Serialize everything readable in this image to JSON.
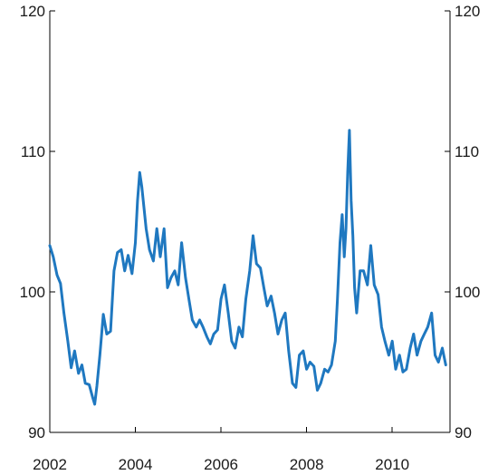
{
  "chart_data": {
    "type": "line",
    "title": "",
    "xlabel": "",
    "ylabel": "",
    "xlim": [
      2002,
      2011.35
    ],
    "ylim": [
      90,
      120
    ],
    "x_ticks": [
      "2002",
      "2004",
      "2006",
      "2008",
      "2010"
    ],
    "y_ticks_left": [
      "90",
      "100",
      "110",
      "120"
    ],
    "y_ticks_right": [
      "90",
      "100",
      "110",
      "120"
    ],
    "grid": false,
    "legend": "none",
    "series": [
      {
        "color": "#1f78c0",
        "x": [
          2002.0,
          2002.08,
          2002.17,
          2002.25,
          2002.33,
          2002.42,
          2002.5,
          2002.58,
          2002.67,
          2002.75,
          2002.83,
          2002.92,
          2003.0,
          2003.05,
          2003.1,
          2003.17,
          2003.25,
          2003.33,
          2003.42,
          2003.5,
          2003.58,
          2003.67,
          2003.75,
          2003.83,
          2003.92,
          2004.0,
          2004.05,
          2004.1,
          2004.15,
          2004.25,
          2004.33,
          2004.42,
          2004.5,
          2004.58,
          2004.67,
          2004.75,
          2004.83,
          2004.92,
          2005.0,
          2005.08,
          2005.17,
          2005.25,
          2005.33,
          2005.42,
          2005.5,
          2005.58,
          2005.67,
          2005.75,
          2005.83,
          2005.92,
          2006.0,
          2006.08,
          2006.17,
          2006.25,
          2006.33,
          2006.42,
          2006.5,
          2006.58,
          2006.67,
          2006.75,
          2006.83,
          2006.92,
          2007.0,
          2007.08,
          2007.17,
          2007.25,
          2007.33,
          2007.42,
          2007.5,
          2007.58,
          2007.67,
          2007.75,
          2007.83,
          2007.92,
          2008.0,
          2008.08,
          2008.17,
          2008.25,
          2008.33,
          2008.42,
          2008.5,
          2008.58,
          2008.67,
          2008.72,
          2008.78,
          2008.83,
          2008.88,
          2008.92,
          2008.96,
          2009.0,
          2009.04,
          2009.08,
          2009.12,
          2009.17,
          2009.25,
          2009.33,
          2009.42,
          2009.5,
          2009.58,
          2009.67,
          2009.75,
          2009.83,
          2009.92,
          2010.0,
          2010.08,
          2010.17,
          2010.25,
          2010.33,
          2010.42,
          2010.5,
          2010.58,
          2010.67,
          2010.75,
          2010.83,
          2010.92,
          2011.0,
          2011.08,
          2011.17,
          2011.25
        ],
        "y": [
          103.3,
          102.5,
          101.2,
          100.6,
          98.5,
          96.5,
          94.6,
          95.8,
          94.2,
          94.8,
          93.5,
          93.4,
          92.5,
          92.0,
          93.3,
          95.5,
          98.4,
          97.0,
          97.2,
          101.5,
          102.8,
          103.0,
          101.5,
          102.6,
          101.3,
          103.5,
          106.5,
          108.5,
          107.5,
          104.5,
          103.0,
          102.2,
          104.5,
          102.5,
          104.5,
          100.3,
          101.0,
          101.5,
          100.5,
          103.5,
          101.0,
          99.5,
          98.0,
          97.5,
          98.0,
          97.5,
          96.8,
          96.3,
          97.0,
          97.3,
          99.5,
          100.5,
          98.5,
          96.5,
          96.0,
          97.5,
          96.8,
          99.5,
          101.5,
          104.0,
          102.0,
          101.7,
          100.3,
          99.0,
          99.7,
          98.5,
          97.0,
          98.0,
          98.5,
          95.8,
          93.5,
          93.2,
          95.5,
          95.8,
          94.5,
          95.0,
          94.7,
          93.0,
          93.5,
          94.5,
          94.3,
          94.8,
          96.5,
          99.5,
          103.5,
          105.5,
          102.5,
          104.5,
          108.5,
          111.5,
          106.5,
          104.0,
          100.3,
          98.5,
          101.5,
          101.5,
          100.5,
          103.3,
          100.5,
          99.8,
          97.5,
          96.5,
          95.5,
          96.5,
          94.5,
          95.5,
          94.3,
          94.5,
          96.0,
          97.0,
          95.5,
          96.5,
          97.0,
          97.5,
          98.5,
          95.5,
          95.0,
          96.0,
          94.8
        ]
      }
    ]
  }
}
